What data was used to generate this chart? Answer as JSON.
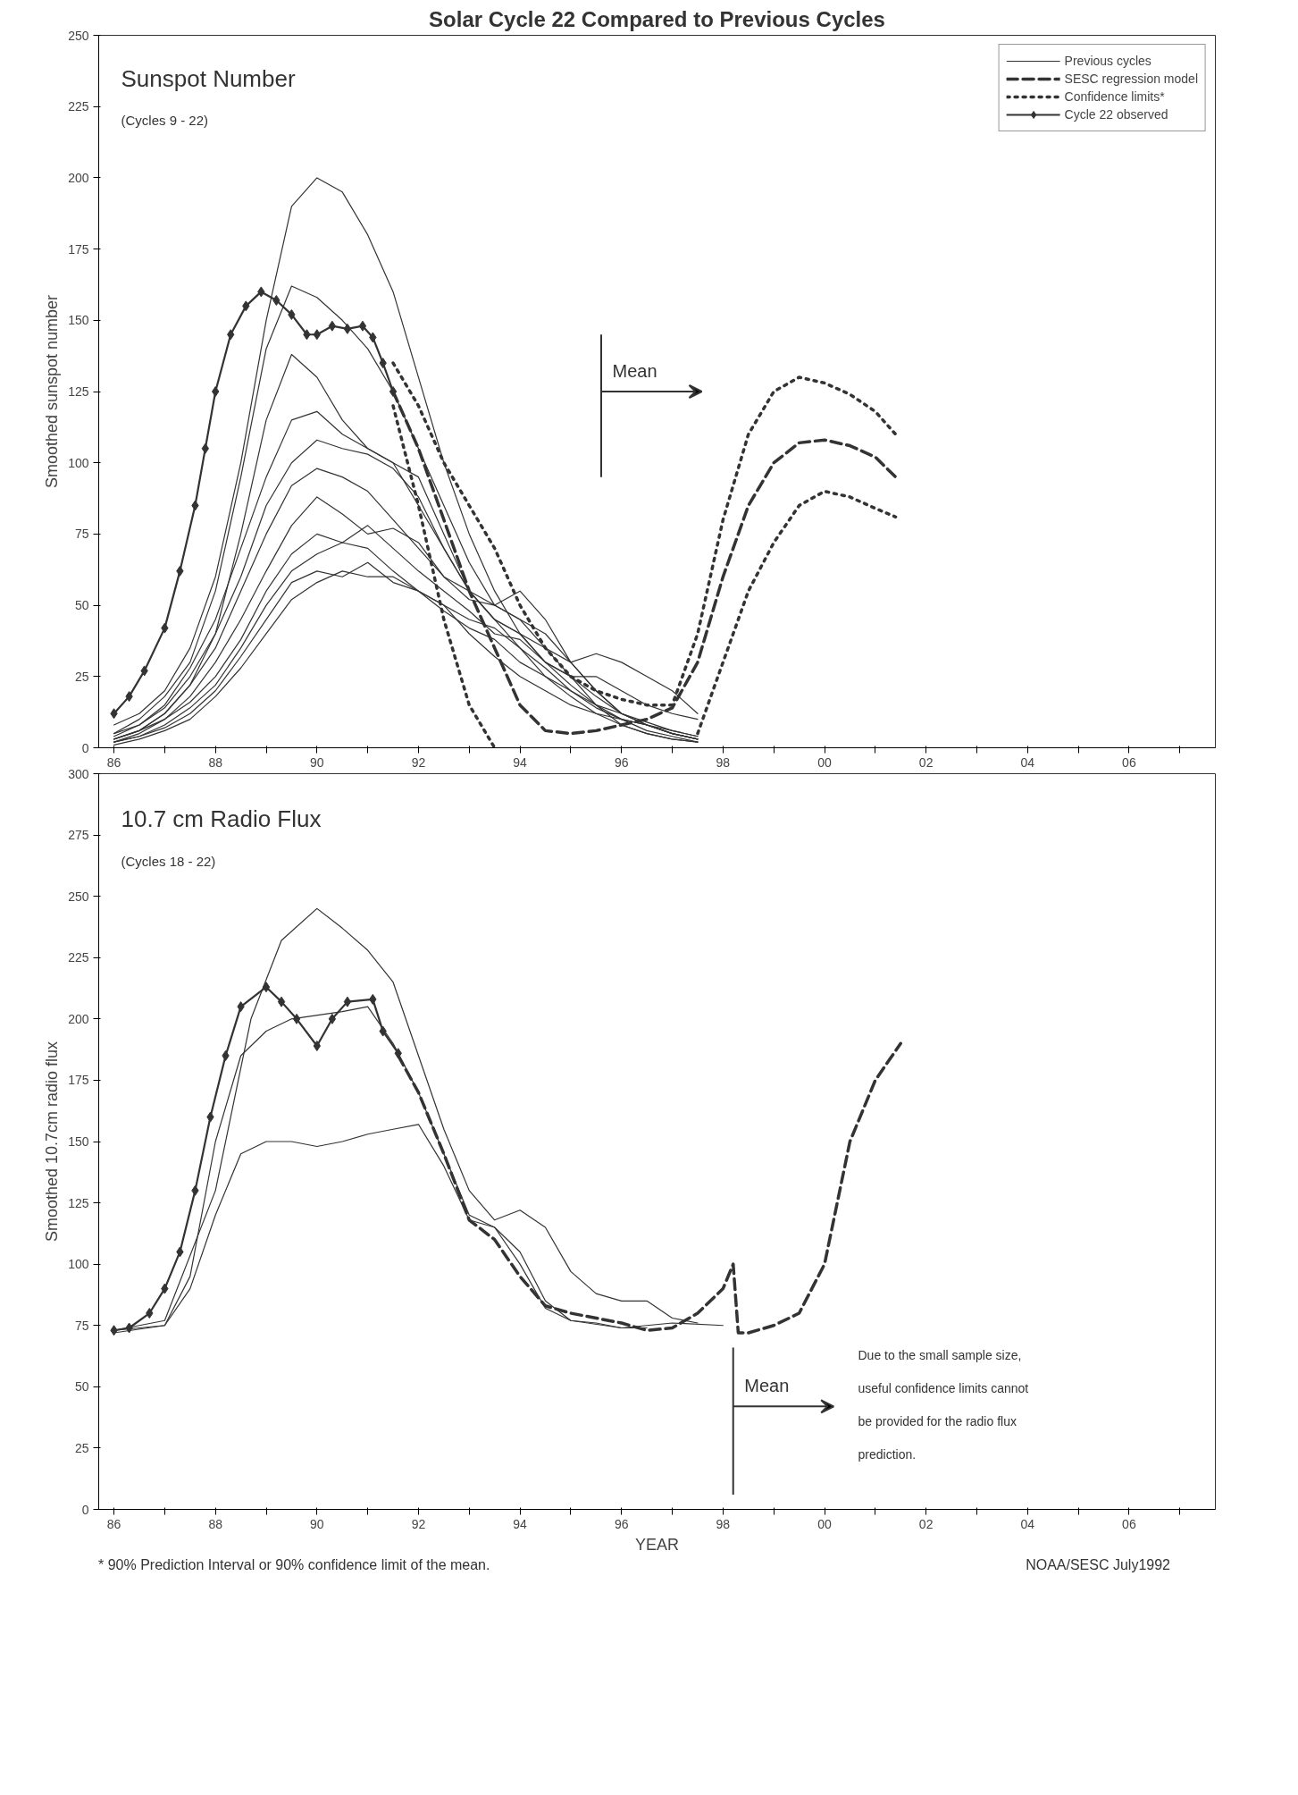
{
  "chart_data": [
    {
      "type": "line",
      "title": "Solar Cycle 22 Compared to Previous Cycles",
      "ylabel": "Smoothed sunspot number",
      "annotations": [
        "Sunspot Number",
        "(Cycles 9 - 22)"
      ],
      "ref_lines": [
        {
          "axis": "x",
          "value": 1995.6,
          "label": "Mean"
        }
      ],
      "xlim": [
        1985.7,
        2007.7
      ],
      "ylim": [
        0,
        250
      ],
      "xticks": [
        {
          "value": 1986,
          "label": "86"
        },
        {
          "value": 1987,
          "label": null
        },
        {
          "value": 1988,
          "label": "88"
        },
        {
          "value": 1989,
          "label": null
        },
        {
          "value": 1990,
          "label": "90"
        },
        {
          "value": 1991,
          "label": null
        },
        {
          "value": 1992,
          "label": "92"
        },
        {
          "value": 1993,
          "label": null
        },
        {
          "value": 1994,
          "label": "94"
        },
        {
          "value": 1995,
          "label": null
        },
        {
          "value": 1996,
          "label": "96"
        },
        {
          "value": 1997,
          "label": null
        },
        {
          "value": 1998,
          "label": "98"
        },
        {
          "value": 1999,
          "label": null
        },
        {
          "value": 2000,
          "label": "00"
        },
        {
          "value": 2001,
          "label": null
        },
        {
          "value": 2002,
          "label": "02"
        },
        {
          "value": 2003,
          "label": null
        },
        {
          "value": 2004,
          "label": "04"
        },
        {
          "value": 2005,
          "label": null
        },
        {
          "value": 2006,
          "label": "06"
        },
        {
          "value": 2007,
          "label": null
        }
      ],
      "yticks": [
        0,
        25,
        50,
        75,
        100,
        125,
        150,
        175,
        200,
        225,
        250
      ],
      "legend": "top right",
      "x": [
        1986,
        1986.5,
        1987,
        1987.5,
        1988,
        1988.5,
        1989,
        1989.5,
        1990,
        1990.5,
        1991,
        1991.5,
        1992,
        1992.5,
        1993,
        1993.5,
        1994,
        1994.5,
        1995,
        1995.5,
        1996,
        1996.5,
        1997,
        1997.5
      ],
      "series": [
        {
          "name": "Previous cycles",
          "color": "#333333",
          "line_style": "solid",
          "values": [
            8,
            12,
            20,
            35,
            60,
            100,
            150,
            190,
            200,
            195,
            180,
            160,
            130,
            100,
            75,
            55,
            40,
            30,
            25,
            25,
            20,
            15,
            12,
            10
          ]
        },
        {
          "color": "#333333",
          "line_style": "solid",
          "values": [
            5,
            10,
            18,
            30,
            55,
            95,
            140,
            162,
            158,
            150,
            140,
            125,
            105,
            85,
            65,
            50,
            45,
            40,
            30,
            20,
            12,
            8,
            5,
            3
          ]
        },
        {
          "color": "#333333",
          "line_style": "solid",
          "values": [
            3,
            6,
            12,
            22,
            40,
            75,
            115,
            138,
            130,
            115,
            105,
            100,
            85,
            70,
            55,
            45,
            40,
            30,
            25,
            15,
            8,
            5,
            3,
            2
          ]
        },
        {
          "color": "#333333",
          "line_style": "solid",
          "values": [
            4,
            8,
            15,
            28,
            45,
            70,
            95,
            115,
            118,
            110,
            105,
            100,
            95,
            75,
            55,
            45,
            35,
            25,
            18,
            12,
            8,
            5,
            3,
            2
          ]
        },
        {
          "color": "#333333",
          "line_style": "solid",
          "values": [
            5,
            8,
            14,
            25,
            40,
            60,
            85,
            100,
            108,
            105,
            103,
            98,
            88,
            70,
            55,
            50,
            55,
            45,
            30,
            20,
            12,
            8,
            5,
            3
          ]
        },
        {
          "color": "#333333",
          "line_style": "solid",
          "values": [
            3,
            6,
            12,
            22,
            35,
            55,
            75,
            92,
            98,
            95,
            90,
            80,
            70,
            60,
            52,
            50,
            45,
            35,
            25,
            18,
            12,
            8,
            5,
            3
          ]
        },
        {
          "color": "#333333",
          "line_style": "solid",
          "values": [
            2,
            5,
            10,
            18,
            30,
            45,
            62,
            78,
            88,
            82,
            75,
            77,
            72,
            60,
            55,
            45,
            40,
            35,
            30,
            33,
            30,
            25,
            20,
            12
          ]
        },
        {
          "color": "#333333",
          "line_style": "solid",
          "values": [
            3,
            6,
            10,
            16,
            25,
            38,
            55,
            68,
            75,
            72,
            78,
            70,
            62,
            55,
            48,
            40,
            38,
            30,
            22,
            15,
            10,
            6,
            4,
            2
          ]
        },
        {
          "color": "#333333",
          "line_style": "solid",
          "values": [
            2,
            4,
            8,
            14,
            22,
            35,
            50,
            62,
            68,
            72,
            70,
            62,
            55,
            50,
            45,
            42,
            35,
            28,
            20,
            14,
            10,
            8,
            5,
            3
          ]
        },
        {
          "color": "#333333",
          "line_style": "solid",
          "values": [
            2,
            4,
            7,
            12,
            20,
            32,
            45,
            58,
            62,
            60,
            65,
            58,
            55,
            48,
            42,
            38,
            30,
            25,
            20,
            15,
            12,
            9,
            6,
            4
          ]
        },
        {
          "color": "#333333",
          "line_style": "solid",
          "values": [
            1,
            3,
            6,
            10,
            18,
            28,
            40,
            52,
            58,
            62,
            60,
            60,
            55,
            50,
            40,
            32,
            25,
            20,
            15,
            12,
            10,
            8,
            6,
            4
          ]
        },
        {
          "name": "SESC regression model",
          "color": "#333333",
          "line_style": "dashed",
          "x": [
            1991.5,
            1992,
            1992.5,
            1993,
            1993.5,
            1994,
            1994.5,
            1995,
            1995.5,
            1996,
            1996.5,
            1997,
            1997.5,
            1998,
            1998.5,
            1999,
            1999.5,
            2000,
            2000.5,
            2001,
            2001.4
          ],
          "values": [
            125,
            105,
            80,
            55,
            35,
            15,
            6,
            5,
            6,
            8,
            10,
            14,
            30,
            60,
            85,
            100,
            107,
            108,
            106,
            102,
            95
          ]
        },
        {
          "name": "Confidence limits*",
          "color": "#333333",
          "line_style": "dotted",
          "x": [
            1991.5,
            1992,
            1992.5,
            1993,
            1993.5,
            1994,
            1994.5,
            1995,
            1995.5,
            1996,
            1996.5,
            1997,
            1997.5,
            1998,
            1998.5,
            1999,
            1999.5,
            2000,
            2000.5,
            2001,
            2001.4
          ],
          "values": [
            135,
            120,
            100,
            85,
            70,
            50,
            35,
            25,
            20,
            17,
            15,
            15,
            40,
            80,
            110,
            125,
            130,
            128,
            124,
            118,
            110
          ]
        },
        {
          "color": "#333333",
          "line_style": "dotted",
          "x": [
            1991.5,
            1992,
            1992.5,
            1993,
            1993.5,
            1994,
            1994.5,
            1995,
            1995.5,
            1996,
            1996.5,
            1997,
            1997.5,
            1998,
            1998.5,
            1999,
            1999.5,
            2000,
            2000.5,
            2001,
            2001.4
          ],
          "values": [
            120,
            85,
            45,
            15,
            0,
            null,
            null,
            null,
            null,
            null,
            null,
            null,
            5,
            30,
            55,
            72,
            85,
            90,
            88,
            84,
            81
          ]
        },
        {
          "name": "Cycle 22 observed",
          "color": "#333333",
          "line_style": "solid",
          "marker": "diamond",
          "x": [
            1986.0,
            1986.3,
            1986.6,
            1987.0,
            1987.3,
            1987.6,
            1987.8,
            1988.0,
            1988.3,
            1988.6,
            1988.9,
            1989.2,
            1989.5,
            1989.8,
            1990.0,
            1990.3,
            1990.6,
            1990.9,
            1991.1,
            1991.3,
            1991.5
          ],
          "values": [
            12,
            18,
            27,
            42,
            62,
            85,
            105,
            125,
            145,
            155,
            160,
            157,
            152,
            145,
            145,
            148,
            147,
            148,
            144,
            135,
            125
          ]
        }
      ]
    },
    {
      "type": "line",
      "xlabel": "YEAR",
      "ylabel": "Smoothed 10.7cm radio flux",
      "annotations": [
        "10.7 cm Radio Flux",
        "(Cycles 18 - 22)",
        "Due  to the small sample size, useful confidence limits cannot be provided for the radio flux prediction.",
        "* 90% Prediction Interval or 90% confidence limit of the mean.",
        "NOAA/SESC  July1992"
      ],
      "ref_lines": [
        {
          "axis": "x",
          "value": 1998.2,
          "label": "Mean"
        }
      ],
      "xlim": [
        1985.7,
        2007.7
      ],
      "ylim": [
        0,
        300
      ],
      "xticks": [
        {
          "value": 1986,
          "label": "86"
        },
        {
          "value": 1987,
          "label": null
        },
        {
          "value": 1988,
          "label": "88"
        },
        {
          "value": 1989,
          "label": null
        },
        {
          "value": 1990,
          "label": "90"
        },
        {
          "value": 1991,
          "label": null
        },
        {
          "value": 1992,
          "label": "92"
        },
        {
          "value": 1993,
          "label": null
        },
        {
          "value": 1994,
          "label": "94"
        },
        {
          "value": 1995,
          "label": null
        },
        {
          "value": 1996,
          "label": "96"
        },
        {
          "value": 1997,
          "label": null
        },
        {
          "value": 1998,
          "label": "98"
        },
        {
          "value": 1999,
          "label": null
        },
        {
          "value": 2000,
          "label": "00"
        },
        {
          "value": 2001,
          "label": null
        },
        {
          "value": 2002,
          "label": "02"
        },
        {
          "value": 2003,
          "label": null
        },
        {
          "value": 2004,
          "label": "04"
        },
        {
          "value": 2005,
          "label": null
        },
        {
          "value": 2006,
          "label": "06"
        },
        {
          "value": 2007,
          "label": null
        }
      ],
      "yticks": [
        0,
        25,
        50,
        75,
        100,
        125,
        150,
        175,
        200,
        225,
        250,
        275,
        300
      ],
      "series": [
        {
          "color": "#333333",
          "line_style": "solid",
          "x": [
            1986,
            1987,
            1988,
            1988.7,
            1989.3,
            1990,
            1990.5,
            1991,
            1991.5,
            1992,
            1992.5,
            1993,
            1993.5,
            1994,
            1994.5,
            1995,
            1995.5,
            1996,
            1996.5,
            1997,
            1997.5
          ],
          "values": [
            73,
            77,
            130,
            200,
            232,
            245,
            237,
            228,
            215,
            185,
            155,
            130,
            118,
            122,
            115,
            97,
            88,
            85,
            85,
            78,
            76
          ]
        },
        {
          "color": "#333333",
          "line_style": "solid",
          "x": [
            1986,
            1987,
            1987.5,
            1988,
            1988.5,
            1989,
            1989.5,
            1990.5,
            1991,
            1991.5,
            1992,
            1992.5,
            1993,
            1993.5,
            1994,
            1994.5,
            1995,
            1995.5,
            1996,
            1996.5
          ],
          "values": [
            72,
            75,
            95,
            150,
            185,
            195,
            200,
            203,
            205,
            190,
            170,
            145,
            120,
            115,
            105,
            85,
            77,
            76,
            74,
            74
          ]
        },
        {
          "color": "#333333",
          "line_style": "solid",
          "x": [
            1986,
            1987,
            1987.5,
            1988,
            1988.5,
            1989,
            1989.5,
            1990,
            1990.5,
            1991,
            1991.5,
            1992,
            1992.5,
            1993,
            1993.5,
            1994,
            1994.5,
            1995,
            1996,
            1997,
            1998
          ],
          "values": [
            73,
            75,
            90,
            120,
            145,
            150,
            150,
            148,
            150,
            153,
            155,
            157,
            140,
            118,
            115,
            100,
            82,
            77,
            74,
            76,
            75
          ]
        },
        {
          "color": "#333333",
          "line_style": "dashed",
          "x": [
            1991.6,
            1992,
            1992.5,
            1993,
            1993.5,
            1994,
            1994.5,
            1995,
            1995.5,
            1996,
            1996.5,
            1997,
            1997.5,
            1998,
            1998.2,
            1998.3,
            1998.5,
            1999,
            1999.5,
            2000,
            2000.5,
            2001,
            2001.5
          ],
          "values": [
            185,
            170,
            145,
            118,
            110,
            95,
            83,
            80,
            78,
            76,
            73,
            74,
            80,
            90,
            100,
            72,
            72,
            75,
            80,
            100,
            150,
            175,
            190
          ]
        },
        {
          "color": "#333333",
          "line_style": "solid",
          "marker": "diamond",
          "x": [
            1986.0,
            1986.3,
            1986.7,
            1987.0,
            1987.3,
            1987.6,
            1987.9,
            1988.2,
            1988.5,
            1989.0,
            1989.3,
            1989.6,
            1990.0,
            1990.3,
            1990.6,
            1991.1,
            1991.3,
            1991.6
          ],
          "values": [
            73,
            74,
            80,
            90,
            105,
            130,
            160,
            185,
            205,
            213,
            207,
            200,
            189,
            200,
            207,
            208,
            195,
            186
          ]
        }
      ]
    }
  ]
}
